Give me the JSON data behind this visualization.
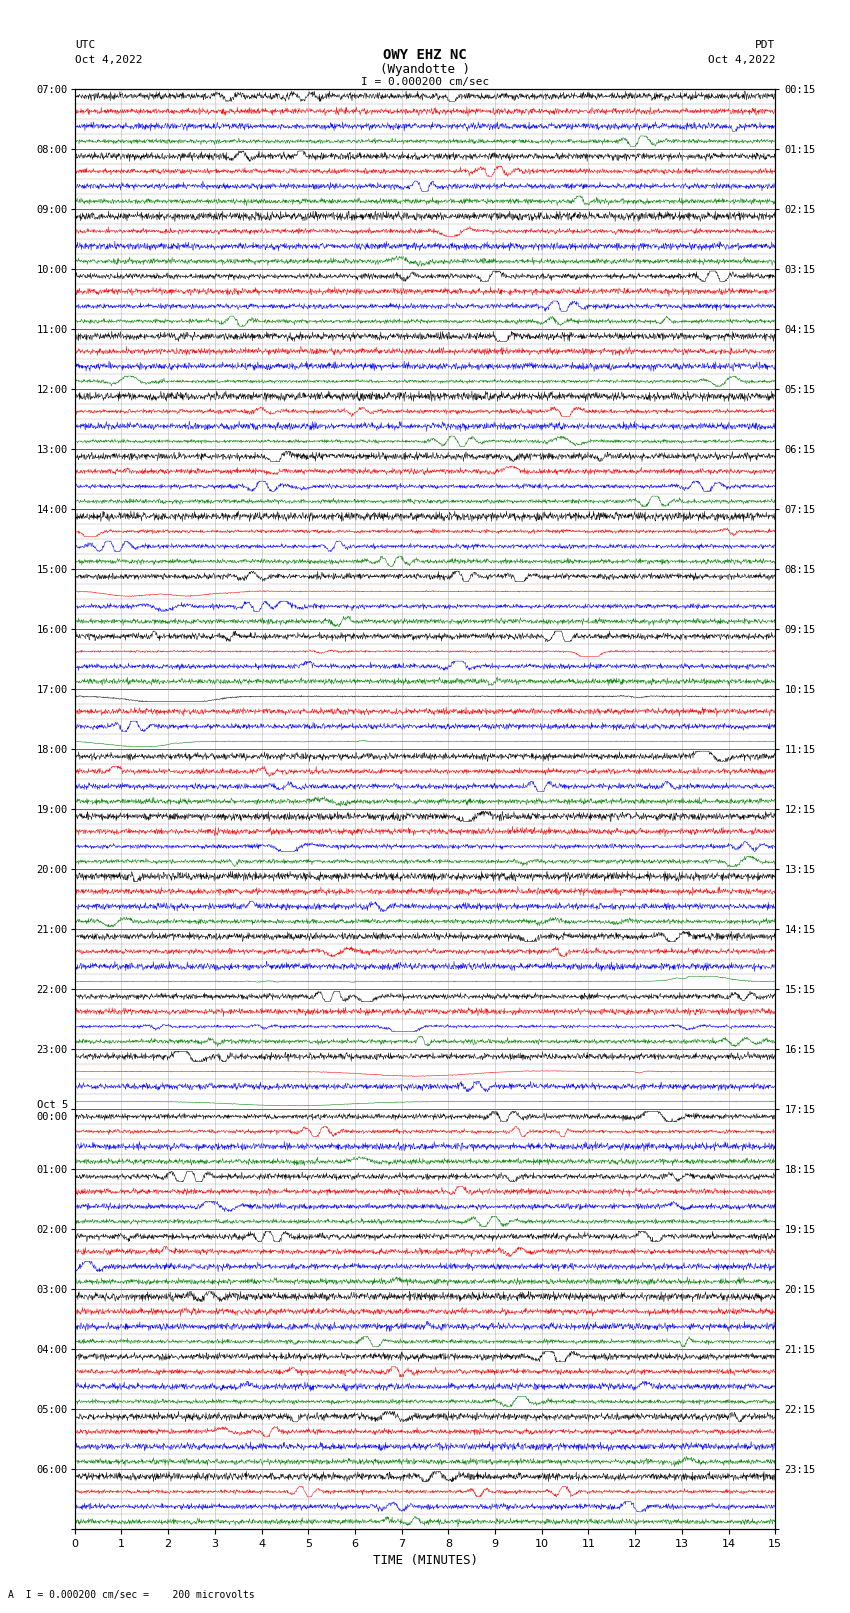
{
  "title_line1": "OWY EHZ NC",
  "title_line2": "(Wyandotte )",
  "scale_label": "I = 0.000200 cm/sec",
  "left_label_top": "UTC",
  "left_label_date": "Oct 4,2022",
  "right_label_top": "PDT",
  "right_label_date": "Oct 4,2022",
  "bottom_label": "TIME (MINUTES)",
  "footer_label": "A  I = 0.000200 cm/sec =    200 microvolts",
  "utc_times": [
    "07:00",
    "",
    "",
    "",
    "08:00",
    "",
    "",
    "",
    "09:00",
    "",
    "",
    "",
    "10:00",
    "",
    "",
    "",
    "11:00",
    "",
    "",
    "",
    "12:00",
    "",
    "",
    "",
    "13:00",
    "",
    "",
    "",
    "14:00",
    "",
    "",
    "",
    "15:00",
    "",
    "",
    "",
    "16:00",
    "",
    "",
    "",
    "17:00",
    "",
    "",
    "",
    "18:00",
    "",
    "",
    "",
    "19:00",
    "",
    "",
    "",
    "20:00",
    "",
    "",
    "",
    "21:00",
    "",
    "",
    "",
    "22:00",
    "",
    "",
    "",
    "23:00",
    "",
    "",
    "",
    "Oct 5\n00:00",
    "",
    "",
    "",
    "01:00",
    "",
    "",
    "",
    "02:00",
    "",
    "",
    "",
    "03:00",
    "",
    "",
    "",
    "04:00",
    "",
    "",
    "",
    "05:00",
    "",
    "",
    "",
    "06:00",
    "",
    "",
    ""
  ],
  "pdt_times": [
    "00:15",
    "",
    "",
    "",
    "01:15",
    "",
    "",
    "",
    "02:15",
    "",
    "",
    "",
    "03:15",
    "",
    "",
    "",
    "04:15",
    "",
    "",
    "",
    "05:15",
    "",
    "",
    "",
    "06:15",
    "",
    "",
    "",
    "07:15",
    "",
    "",
    "",
    "08:15",
    "",
    "",
    "",
    "09:15",
    "",
    "",
    "",
    "10:15",
    "",
    "",
    "",
    "11:15",
    "",
    "",
    "",
    "12:15",
    "",
    "",
    "",
    "13:15",
    "",
    "",
    "",
    "14:15",
    "",
    "",
    "",
    "15:15",
    "",
    "",
    "",
    "16:15",
    "",
    "",
    "",
    "17:15",
    "",
    "",
    "",
    "18:15",
    "",
    "",
    "",
    "19:15",
    "",
    "",
    "",
    "20:15",
    "",
    "",
    "",
    "21:15",
    "",
    "",
    "",
    "22:15",
    "",
    "",
    "",
    "23:15",
    "",
    "",
    ""
  ],
  "n_hours": 24,
  "n_traces_per_hour": 4,
  "n_minutes": 15,
  "background_color": "#ffffff",
  "trace_colors": [
    "black",
    "red",
    "blue",
    "green"
  ],
  "grid_color": "#888888",
  "font_family": "monospace",
  "seed": 42
}
